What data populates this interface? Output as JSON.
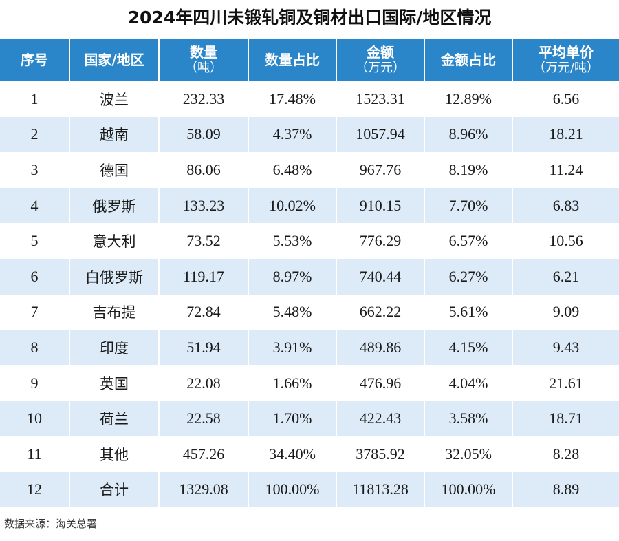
{
  "title": "2024年四川未锻轧铜及铜材出口国际/地区情况",
  "headers": [
    {
      "label": "序号",
      "unit": ""
    },
    {
      "label": "国家/地区",
      "unit": ""
    },
    {
      "label": "数量",
      "unit": "（吨）"
    },
    {
      "label": "数量占比",
      "unit": ""
    },
    {
      "label": "金额",
      "unit": "（万元）"
    },
    {
      "label": "金额占比",
      "unit": ""
    },
    {
      "label": "平均单价",
      "unit": "（万元/吨）"
    }
  ],
  "rows": [
    {
      "no": "1",
      "region": "波兰",
      "quantity": "232.33",
      "quantity_share": "17.48%",
      "amount": "1523.31",
      "amount_share": "12.89%",
      "unit_price": "6.56"
    },
    {
      "no": "2",
      "region": "越南",
      "quantity": "58.09",
      "quantity_share": "4.37%",
      "amount": "1057.94",
      "amount_share": "8.96%",
      "unit_price": "18.21"
    },
    {
      "no": "3",
      "region": "德国",
      "quantity": "86.06",
      "quantity_share": "6.48%",
      "amount": "967.76",
      "amount_share": "8.19%",
      "unit_price": "11.24"
    },
    {
      "no": "4",
      "region": "俄罗斯",
      "quantity": "133.23",
      "quantity_share": "10.02%",
      "amount": "910.15",
      "amount_share": "7.70%",
      "unit_price": "6.83"
    },
    {
      "no": "5",
      "region": "意大利",
      "quantity": "73.52",
      "quantity_share": "5.53%",
      "amount": "776.29",
      "amount_share": "6.57%",
      "unit_price": "10.56"
    },
    {
      "no": "6",
      "region": "白俄罗斯",
      "quantity": "119.17",
      "quantity_share": "8.97%",
      "amount": "740.44",
      "amount_share": "6.27%",
      "unit_price": "6.21"
    },
    {
      "no": "7",
      "region": "吉布提",
      "quantity": "72.84",
      "quantity_share": "5.48%",
      "amount": "662.22",
      "amount_share": "5.61%",
      "unit_price": "9.09"
    },
    {
      "no": "8",
      "region": "印度",
      "quantity": "51.94",
      "quantity_share": "3.91%",
      "amount": "489.86",
      "amount_share": "4.15%",
      "unit_price": "9.43"
    },
    {
      "no": "9",
      "region": "英国",
      "quantity": "22.08",
      "quantity_share": "1.66%",
      "amount": "476.96",
      "amount_share": "4.04%",
      "unit_price": "21.61"
    },
    {
      "no": "10",
      "region": "荷兰",
      "quantity": "22.58",
      "quantity_share": "1.70%",
      "amount": "422.43",
      "amount_share": "3.58%",
      "unit_price": "18.71"
    },
    {
      "no": "11",
      "region": "其他",
      "quantity": "457.26",
      "quantity_share": "34.40%",
      "amount": "3785.92",
      "amount_share": "32.05%",
      "unit_price": "8.28"
    },
    {
      "no": "12",
      "region": "合计",
      "quantity": "1329.08",
      "quantity_share": "100.00%",
      "amount": "11813.28",
      "amount_share": "100.00%",
      "unit_price": "8.89"
    }
  ],
  "source": "数据来源：海关总署",
  "colors": {
    "header_bg": "#2b86c9",
    "header_text": "#ffffff",
    "stripe": "#dcebf7",
    "row_bg": "#ffffff"
  }
}
